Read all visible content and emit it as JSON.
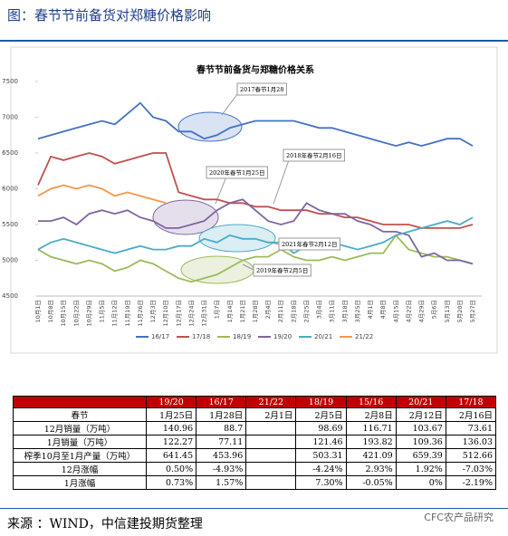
{
  "header": {
    "title": "图：春节节前备货对郑糖价格影响"
  },
  "chart_data": {
    "type": "line",
    "title": "春节节前备货与郑糖价格关系",
    "categories": [
      "10月1日",
      "10月8日",
      "10月15日",
      "10月22日",
      "10月29日",
      "11月5日",
      "11月12日",
      "11月19日",
      "11月26日",
      "12月3日",
      "12月10日",
      "12月17日",
      "12月24日",
      "12月31日",
      "1月7日",
      "1月14日",
      "1月21日",
      "1月28日",
      "2月4日",
      "2月11日",
      "2月18日",
      "2月25日",
      "3月4日",
      "3月11日",
      "3月18日",
      "3月25日",
      "4月1日",
      "4月8日",
      "4月15日",
      "4月22日",
      "4月29日",
      "5月6日",
      "5月13日",
      "5月20日",
      "5月27日"
    ],
    "series": [
      {
        "name": "16/17",
        "color": "#4472c4",
        "values": [
          6700,
          6750,
          6800,
          6850,
          6900,
          6950,
          6900,
          7050,
          7200,
          7000,
          6950,
          6800,
          6800,
          6700,
          6750,
          6850,
          6900,
          6950,
          6950,
          6950,
          6950,
          6900,
          6850,
          6850,
          6800,
          6750,
          6700,
          6650,
          6600,
          6650,
          6600,
          6650,
          6700,
          6700,
          6600
        ]
      },
      {
        "name": "17/18",
        "color": "#c0504d",
        "values": [
          6050,
          6450,
          6400,
          6450,
          6500,
          6450,
          6350,
          6400,
          6450,
          6500,
          6500,
          5950,
          5900,
          5850,
          5850,
          5800,
          5800,
          5750,
          5750,
          5700,
          5700,
          5700,
          5650,
          5650,
          5600,
          5600,
          5550,
          5500,
          5500,
          5500,
          5450,
          5450,
          5450,
          5450,
          5500
        ]
      },
      {
        "name": "18/19",
        "color": "#9bbb59",
        "values": [
          5150,
          5050,
          5000,
          4950,
          5000,
          4950,
          4850,
          4900,
          5000,
          4950,
          4850,
          4750,
          4700,
          4750,
          4800,
          4900,
          5000,
          5050,
          5050,
          5150,
          5050,
          5000,
          5000,
          5050,
          5000,
          5050,
          5100,
          5100,
          5350,
          5150,
          5100,
          5050,
          5050,
          5000,
          4950
        ]
      },
      {
        "name": "19/20",
        "color": "#8064a2",
        "values": [
          5550,
          5550,
          5600,
          5500,
          5650,
          5700,
          5650,
          5700,
          5600,
          5550,
          5450,
          5450,
          5500,
          5550,
          5700,
          5800,
          5850,
          5700,
          5550,
          5500,
          5550,
          5800,
          5700,
          5650,
          5650,
          5550,
          5500,
          5400,
          5400,
          5350,
          5050,
          5100,
          5000,
          5000,
          4950
        ]
      },
      {
        "name": "20/21",
        "color": "#4bacc6",
        "values": [
          5150,
          5250,
          5300,
          5250,
          5200,
          5150,
          5100,
          5150,
          5200,
          5150,
          5150,
          5200,
          5200,
          5300,
          5250,
          5350,
          5300,
          5300,
          5250,
          5250,
          5100,
          5200,
          5250,
          5250,
          5200,
          5150,
          5200,
          5250,
          5350,
          5400,
          5450,
          5500,
          5550,
          5500,
          5600
        ]
      },
      {
        "name": "21/22",
        "color": "#f79646",
        "values": [
          5900,
          6000,
          6050,
          6000,
          6050,
          6000,
          5900,
          5950,
          5900,
          5850,
          5800,
          null,
          null,
          null,
          null,
          null,
          null,
          null,
          null,
          null,
          null,
          null,
          null,
          null,
          null,
          null,
          null,
          null,
          null,
          null,
          null,
          null,
          null,
          null,
          null
        ]
      }
    ],
    "ylim": [
      4500,
      7500
    ],
    "yticks": [
      4500,
      5000,
      5500,
      6000,
      6500,
      7000,
      7500
    ],
    "annotations": [
      {
        "text": "2017春节1月28"
      },
      {
        "text": "2018年春节2月16日"
      },
      {
        "text": "2020年春节1月25日"
      },
      {
        "text": "2021年春节2月12日"
      },
      {
        "text": "2019年春节2月5日"
      }
    ],
    "legend": "bottom"
  },
  "table": {
    "header": [
      null,
      "19/20",
      "16/17",
      "21/22",
      "18/19",
      "15/16",
      "20/21",
      "17/18"
    ],
    "rows": [
      [
        "春节",
        "1月25日",
        "1月28日",
        "2月1日",
        "2月5日",
        "2月8日",
        "2月12日",
        "2月16日"
      ],
      [
        "12月销量（万吨）",
        "140.96",
        "88.7",
        null,
        "98.69",
        "116.71",
        "103.67",
        "73.61"
      ],
      [
        "1月销量（万吨）",
        "122.27",
        "77.11",
        null,
        "121.46",
        "193.82",
        "109.36",
        "136.03"
      ],
      [
        "榨季10月至1月产量（万吨）",
        "641.45",
        "453.96",
        null,
        "503.31",
        "421.09",
        "659.39",
        "512.66"
      ],
      [
        "12月涨幅",
        "0.50%",
        "-4.93%",
        null,
        "-4.24%",
        "2.93%",
        "1.92%",
        "-7.03%"
      ],
      [
        "1月涨幅",
        "0.73%",
        "1.57%",
        null,
        "7.30%",
        "-0.05%",
        "0%",
        "-2.19%"
      ]
    ]
  },
  "footer": {
    "source": "来源 ：WIND，中信建投期货整理",
    "watermark": "CFC农产品研究"
  }
}
